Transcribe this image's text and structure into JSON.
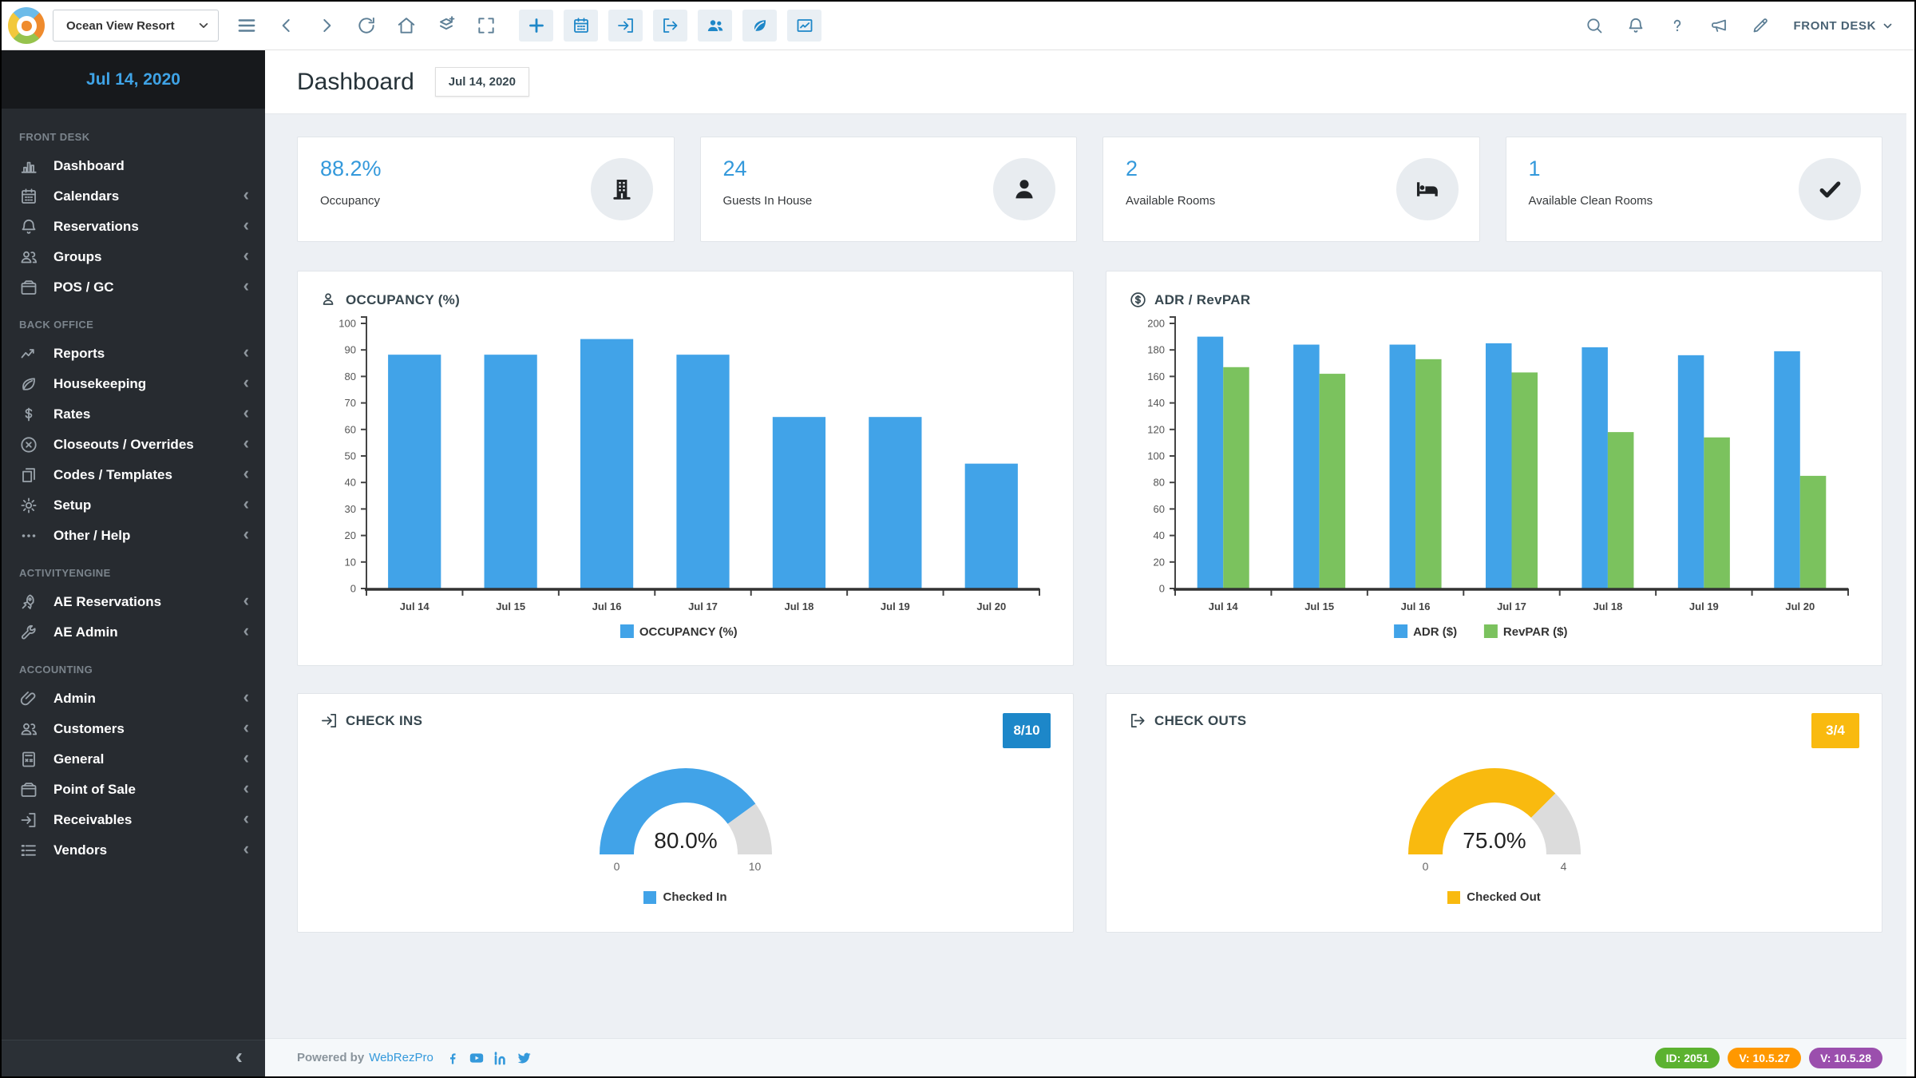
{
  "toolbar": {
    "property_selector": {
      "value": "Ocean View Resort"
    },
    "nav_icons": [
      "menu",
      "chevron-left",
      "chevron-right",
      "refresh",
      "home",
      "layers-plus",
      "expand"
    ],
    "action_icons": [
      "plus",
      "calendar",
      "check-in",
      "check-out",
      "guests",
      "housekeeping",
      "reports"
    ],
    "right_icons": [
      "search",
      "bell",
      "help",
      "announcement",
      "edit"
    ],
    "user_menu": {
      "label": "FRONT DESK"
    }
  },
  "sidebar": {
    "date": "Jul 14, 2020",
    "sections": [
      {
        "label": "FRONT DESK",
        "items": [
          {
            "label": "Dashboard",
            "icon": "dashboard",
            "chevron": false
          },
          {
            "label": "Calendars",
            "icon": "calendar",
            "chevron": true
          },
          {
            "label": "Reservations",
            "icon": "bell",
            "chevron": true
          },
          {
            "label": "Groups",
            "icon": "users",
            "chevron": true
          },
          {
            "label": "POS / GC",
            "icon": "wallet",
            "chevron": true
          }
        ]
      },
      {
        "label": "BACK OFFICE",
        "items": [
          {
            "label": "Reports",
            "icon": "trend",
            "chevron": true
          },
          {
            "label": "Housekeeping",
            "icon": "leaf",
            "chevron": true
          },
          {
            "label": "Rates",
            "icon": "dollar",
            "chevron": true
          },
          {
            "label": "Closeouts / Overrides",
            "icon": "circle-x",
            "chevron": true
          },
          {
            "label": "Codes / Templates",
            "icon": "pages",
            "chevron": true
          },
          {
            "label": "Setup",
            "icon": "gear",
            "chevron": true
          },
          {
            "label": "Other / Help",
            "icon": "ellipsis",
            "chevron": true
          }
        ]
      },
      {
        "label": "ACTIVITYENGINE",
        "items": [
          {
            "label": "AE Reservations",
            "icon": "rocket",
            "chevron": true
          },
          {
            "label": "AE Admin",
            "icon": "wrench",
            "chevron": true
          }
        ]
      },
      {
        "label": "ACCOUNTING",
        "items": [
          {
            "label": "Admin",
            "icon": "paperclip",
            "chevron": true
          },
          {
            "label": "Customers",
            "icon": "users",
            "chevron": true
          },
          {
            "label": "General",
            "icon": "calculator",
            "chevron": true
          },
          {
            "label": "Point of Sale",
            "icon": "wallet",
            "chevron": true
          },
          {
            "label": "Receivables",
            "icon": "door-in",
            "chevron": true
          },
          {
            "label": "Vendors",
            "icon": "list",
            "chevron": true
          }
        ]
      }
    ]
  },
  "header": {
    "title": "Dashboard",
    "date_chip": "Jul 14, 2020"
  },
  "stats": [
    {
      "value": "88.2%",
      "label": "Occupancy",
      "icon": "building"
    },
    {
      "value": "24",
      "label": "Guests In House",
      "icon": "person"
    },
    {
      "value": "2",
      "label": "Available Rooms",
      "icon": "bed"
    },
    {
      "value": "1",
      "label": "Available Clean Rooms",
      "icon": "check"
    }
  ],
  "chart_data": [
    {
      "id": "occupancy",
      "type": "bar",
      "title": "OCCUPANCY (%)",
      "title_icon": "user",
      "categories": [
        "Jul 14",
        "Jul 15",
        "Jul 16",
        "Jul 17",
        "Jul 18",
        "Jul 19",
        "Jul 20"
      ],
      "series": [
        {
          "name": "OCCUPANCY (%)",
          "color": "#41a3e8",
          "values": [
            88.2,
            88.2,
            94.1,
            88.2,
            64.7,
            64.7,
            47.1
          ]
        }
      ],
      "ylim": [
        0,
        100
      ],
      "ytick": 10,
      "grid": false,
      "legend_position": "bottom"
    },
    {
      "id": "adr_revpar",
      "type": "bar",
      "title": "ADR / RevPAR",
      "title_icon": "dollar-circle",
      "categories": [
        "Jul 14",
        "Jul 15",
        "Jul 16",
        "Jul 17",
        "Jul 18",
        "Jul 19",
        "Jul 20"
      ],
      "series": [
        {
          "name": "ADR ($)",
          "color": "#41a3e8",
          "values": [
            190,
            184,
            184,
            185,
            182,
            176,
            179
          ]
        },
        {
          "name": "RevPAR ($)",
          "color": "#7bc25e",
          "values": [
            167,
            162,
            173,
            163,
            118,
            114,
            85
          ]
        }
      ],
      "ylim": [
        0,
        200
      ],
      "ytick": 20,
      "grid": false,
      "legend_position": "bottom"
    },
    {
      "id": "check_ins",
      "type": "gauge",
      "title": "CHECK INS",
      "title_icon": "check-in",
      "value": 8,
      "max": 10,
      "min_label": "0",
      "max_label": "10",
      "percent_label": "80.0%",
      "badge": "8/10",
      "badge_color": "#1d87c9",
      "color": "#41a3e8",
      "track_color": "#dcdcdc",
      "legend": "Checked In"
    },
    {
      "id": "check_outs",
      "type": "gauge",
      "title": "CHECK OUTS",
      "title_icon": "check-out",
      "value": 3,
      "max": 4,
      "min_label": "0",
      "max_label": "4",
      "percent_label": "75.0%",
      "badge": "3/4",
      "badge_color": "#f9ba0f",
      "color": "#f9ba0f",
      "track_color": "#dcdcdc",
      "legend": "Checked Out"
    }
  ],
  "footer": {
    "powered_by": "Powered by",
    "brand": "WebRezPro",
    "social_icons": [
      "facebook",
      "youtube",
      "linkedin",
      "twitter"
    ],
    "badges": [
      {
        "label": "ID: 2051",
        "color": "#5cb230"
      },
      {
        "label": "V: 10.5.27",
        "color": "#ff9800"
      },
      {
        "label": "V: 10.5.28",
        "color": "#9b4fad"
      }
    ]
  }
}
